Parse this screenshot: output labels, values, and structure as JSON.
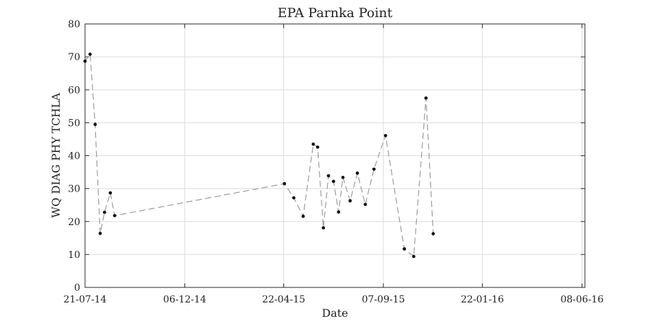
{
  "chart_data": {
    "type": "line",
    "title": "EPA Parnka Point",
    "xlabel": "Date",
    "ylabel": "WQ DIAG PHY TCHLA",
    "x_tick_labels": [
      "21-07-14",
      "06-12-14",
      "22-04-15",
      "07-09-15",
      "22-01-16",
      "08-06-16"
    ],
    "x_ticks": [
      "2014-07-21",
      "2014-12-06",
      "2015-04-22",
      "2015-09-07",
      "2016-01-22",
      "2016-06-08"
    ],
    "xlim": [
      "2014-07-21",
      "2016-06-12"
    ],
    "ylim": [
      0,
      80
    ],
    "y_ticks": [
      0,
      10,
      20,
      30,
      40,
      50,
      60,
      70,
      80
    ],
    "grid": true,
    "series": [
      {
        "marker_color": "#111111",
        "line_color": "#999999",
        "line_style": "dashed",
        "points": [
          {
            "x": "2014-07-21",
            "y": 68.7
          },
          {
            "x": "2014-07-28",
            "y": 70.8
          },
          {
            "x": "2014-08-04",
            "y": 49.5
          },
          {
            "x": "2014-08-11",
            "y": 16.4
          },
          {
            "x": "2014-08-17",
            "y": 22.8
          },
          {
            "x": "2014-08-25",
            "y": 28.7
          },
          {
            "x": "2014-08-31",
            "y": 21.8
          },
          {
            "x": "2015-04-23",
            "y": 31.5
          },
          {
            "x": "2015-05-06",
            "y": 27.2
          },
          {
            "x": "2015-05-19",
            "y": 21.6
          },
          {
            "x": "2015-06-02",
            "y": 43.5
          },
          {
            "x": "2015-06-08",
            "y": 42.6
          },
          {
            "x": "2015-06-16",
            "y": 18.1
          },
          {
            "x": "2015-06-23",
            "y": 33.9
          },
          {
            "x": "2015-06-30",
            "y": 32.2
          },
          {
            "x": "2015-07-07",
            "y": 22.9
          },
          {
            "x": "2015-07-13",
            "y": 33.4
          },
          {
            "x": "2015-07-23",
            "y": 26.3
          },
          {
            "x": "2015-08-02",
            "y": 34.7
          },
          {
            "x": "2015-08-13",
            "y": 25.2
          },
          {
            "x": "2015-08-25",
            "y": 35.9
          },
          {
            "x": "2015-09-10",
            "y": 46.1
          },
          {
            "x": "2015-10-06",
            "y": 11.7
          },
          {
            "x": "2015-10-19",
            "y": 9.4
          },
          {
            "x": "2015-11-05",
            "y": 57.5
          },
          {
            "x": "2015-11-15",
            "y": 16.3
          }
        ]
      }
    ]
  }
}
